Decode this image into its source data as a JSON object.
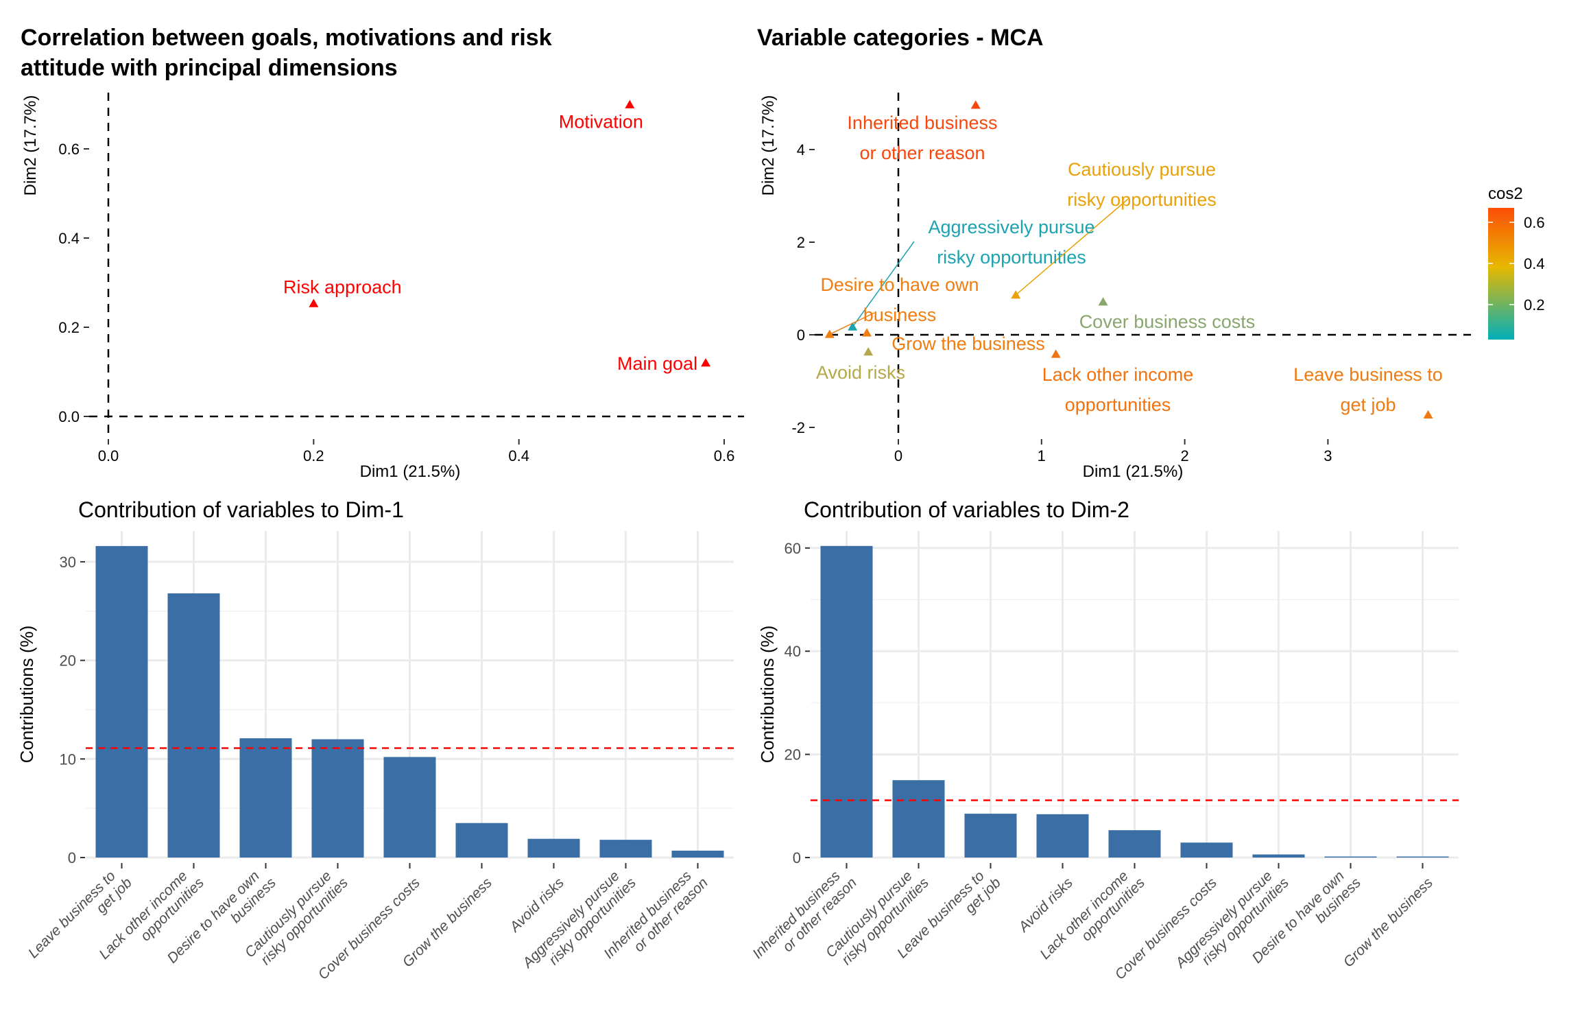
{
  "chart_data": [
    {
      "type": "scatter",
      "id": "var_corr",
      "title": [
        "Correlation between goals, motivations and risk",
        "attitude with principal dimensions"
      ],
      "xlabel": "Dim1 (21.5%)",
      "ylabel": "Dim2 (17.7%)",
      "xlim": [
        -0.06,
        0.62
      ],
      "ylim": [
        -0.05,
        0.72
      ],
      "xticks": [
        0.0,
        0.2,
        0.4,
        0.6
      ],
      "xtick_labels": [
        "0.0",
        "0.2",
        "0.4",
        "0.6"
      ],
      "yticks": [
        0.0,
        0.2,
        0.4,
        0.6
      ],
      "ytick_labels": [
        "0.0",
        "0.2",
        "0.4",
        "0.6"
      ],
      "grid": false,
      "reference_lines": {
        "x": 0,
        "y": 0,
        "style": "dashed"
      },
      "marker": "triangle",
      "color": "#FF0000",
      "points": [
        {
          "label": "Motivation",
          "x": 0.508,
          "y": 0.699,
          "label_pos": "below"
        },
        {
          "label": "Risk approach",
          "x": 0.2,
          "y": 0.253,
          "label_pos": "above"
        },
        {
          "label": "Main goal",
          "x": 0.582,
          "y": 0.12,
          "label_pos": "left"
        }
      ]
    },
    {
      "type": "scatter",
      "id": "var_categories",
      "title": "Variable categories - MCA",
      "xlabel": "Dim1 (21.5%)",
      "ylabel": "Dim2 (17.7%)",
      "xlim": [
        -0.58,
        3.9
      ],
      "ylim": [
        -2.2,
        5.2
      ],
      "xticks": [
        0,
        1,
        2,
        3
      ],
      "xtick_labels": [
        "0",
        "1",
        "2",
        "3"
      ],
      "yticks": [
        -2,
        0,
        2,
        4
      ],
      "ytick_labels": [
        "-2",
        "0",
        "2",
        "4"
      ],
      "grid": false,
      "reference_lines": {
        "x": 0,
        "y": 0,
        "style": "dashed"
      },
      "marker": "triangle",
      "color_by": "cos2",
      "legend": {
        "title": "cos2",
        "placement": "right",
        "type": "gradient",
        "range": [
          0.03,
          0.67
        ],
        "ticks": [
          0.2,
          0.4,
          0.6
        ],
        "tick_labels": [
          "0.2",
          "0.4",
          "0.6"
        ],
        "gradient_colors": [
          "#00AFBB",
          "#E7B800",
          "#FC4E07"
        ]
      },
      "points": [
        {
          "label": [
            "Inherited business",
            "or other reason"
          ],
          "x": 0.54,
          "y": 4.96,
          "cos2": 0.66,
          "color": "#F7470D"
        },
        {
          "label": [
            "Cautiously pursue",
            "risky opportunities"
          ],
          "x": 0.82,
          "y": 0.86,
          "cos2": 0.4,
          "color": "#E8A10A",
          "leader": true
        },
        {
          "label": [
            "Aggressively pursue",
            "risky opportunities"
          ],
          "x": -0.32,
          "y": 0.17,
          "cos2": 0.05,
          "color": "#1BA3B0",
          "leader": true
        },
        {
          "label": [
            "Desire to have own",
            "business"
          ],
          "x": -0.48,
          "y": 0.01,
          "cos2": 0.5,
          "color": "#EF7D0F",
          "leader": true
        },
        {
          "label": [
            "Grow the business"
          ],
          "x": -0.22,
          "y": 0.04,
          "cos2": 0.5,
          "color": "#EF7D0F"
        },
        {
          "label": [
            "Avoid risks"
          ],
          "x": -0.21,
          "y": -0.37,
          "cos2": 0.28,
          "color": "#B5A84A"
        },
        {
          "label": [
            "Cover business costs"
          ],
          "x": 1.43,
          "y": 0.71,
          "cos2": 0.18,
          "color": "#89A66E"
        },
        {
          "label": [
            "Lack other income",
            "opportunities"
          ],
          "x": 1.1,
          "y": -0.42,
          "cos2": 0.55,
          "color": "#F2720E"
        },
        {
          "label": [
            "Leave business to",
            "get job"
          ],
          "x": 3.7,
          "y": -1.73,
          "cos2": 0.52,
          "color": "#F07A10"
        }
      ]
    },
    {
      "type": "bar",
      "id": "contrib_dim1",
      "title": "Contribution of variables to Dim-1",
      "xlabel": "",
      "ylabel": "Contributions (%)",
      "ylim": [
        0,
        33
      ],
      "yticks": [
        0,
        10,
        20,
        30
      ],
      "ytick_labels": [
        "0",
        "10",
        "20",
        "30"
      ],
      "grid": true,
      "bar_color": "#3A6EA5",
      "reference_line": {
        "y": 11.1,
        "color": "#FF0000",
        "style": "dashed"
      },
      "categories": [
        [
          "Leave business to",
          "get job"
        ],
        [
          "Lack other income",
          "opportunities"
        ],
        [
          "Desire to have own",
          "business"
        ],
        [
          "Cautiously pursue",
          "risky opportunities"
        ],
        [
          "Cover business costs"
        ],
        [
          "Grow the business"
        ],
        [
          "Avoid risks"
        ],
        [
          "Aggressively pursue",
          "risky opportunities"
        ],
        [
          "Inherited business",
          "or other reason"
        ]
      ],
      "values": [
        31.6,
        26.8,
        12.1,
        12.0,
        10.2,
        3.5,
        1.9,
        1.8,
        0.7
      ]
    },
    {
      "type": "bar",
      "id": "contrib_dim2",
      "title": "Contribution of variables to Dim-2",
      "xlabel": "",
      "ylabel": "Contributions (%)",
      "ylim": [
        0,
        63
      ],
      "yticks": [
        0,
        20,
        40,
        60
      ],
      "ytick_labels": [
        "0",
        "20",
        "40",
        "60"
      ],
      "grid": true,
      "bar_color": "#3A6EA5",
      "reference_line": {
        "y": 11.1,
        "color": "#FF0000",
        "style": "dashed"
      },
      "categories": [
        [
          "Inherited business",
          "or other reason"
        ],
        [
          "Cautiously pursue",
          "risky opportunities"
        ],
        [
          "Leave business to",
          "get job"
        ],
        [
          "Avoid risks"
        ],
        [
          "Lack other income",
          "opportunities"
        ],
        [
          "Cover business costs"
        ],
        [
          "Aggressively pursue",
          "risky opportunities"
        ],
        [
          "Desire to have own",
          "business"
        ],
        [
          "Grow the business"
        ]
      ],
      "values": [
        60.4,
        15.0,
        8.5,
        8.4,
        5.3,
        2.9,
        0.6,
        0.2,
        0.2
      ]
    }
  ]
}
